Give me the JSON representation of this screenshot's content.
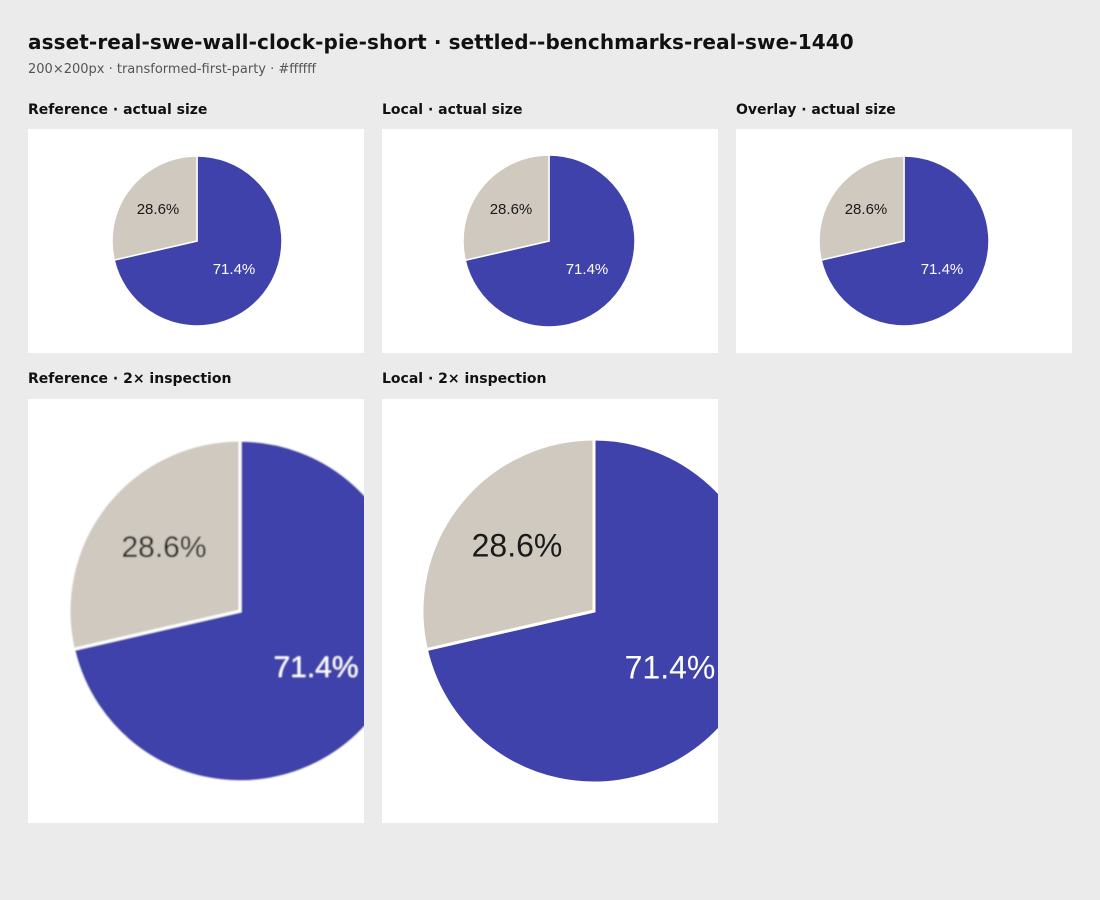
{
  "header": {
    "title": "asset-real-swe-wall-clock-pie-short · settled--benchmarks-real-swe-1440",
    "subtitle": "200×200px · transformed-first-party · #ffffff"
  },
  "panels": {
    "reference_actual": {
      "label": "Reference · actual size"
    },
    "local_actual": {
      "label": "Local · actual size"
    },
    "overlay_actual": {
      "label": "Overlay · actual size"
    },
    "reference_2x": {
      "label": "Reference · 2× inspection"
    },
    "local_2x": {
      "label": "Local · 2× inspection"
    }
  },
  "chart_data": {
    "type": "pie",
    "slices": [
      {
        "value": 71.4,
        "label": "71.4%",
        "color": "#4042ab"
      },
      {
        "value": 28.6,
        "label": "28.6%",
        "color": "#cfc9bf"
      }
    ]
  }
}
